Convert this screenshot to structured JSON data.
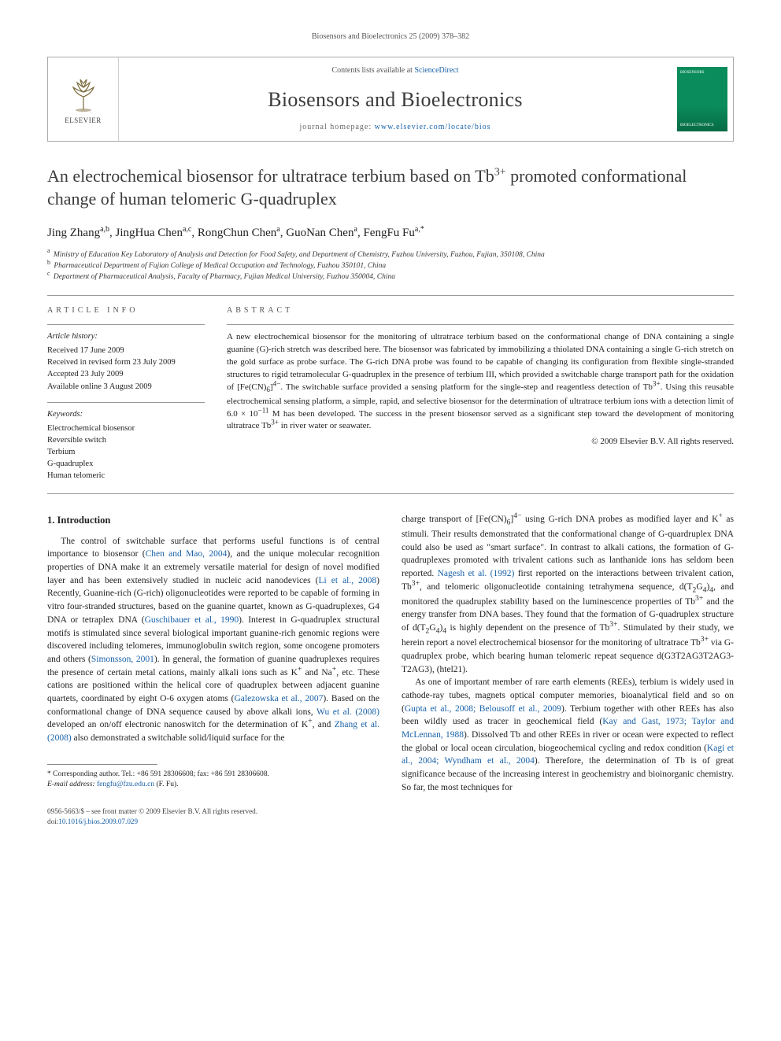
{
  "running_head": "Biosensors and Bioelectronics 25 (2009) 378–382",
  "header": {
    "publisher": "ELSEVIER",
    "contents_prefix": "Contents lists available at ",
    "contents_link": "ScienceDirect",
    "journal": "Biosensors and Bioelectronics",
    "homepage_prefix": "journal homepage: ",
    "homepage": "www.elsevier.com/locate/bios",
    "cover_top": "BIOSENSORS",
    "cover_bottom": "BIOELECTRONICS"
  },
  "title_html": "An electrochemical biosensor for ultratrace terbium based on Tb<sup>3+</sup> promoted conformational change of human telomeric G-quadruplex",
  "authors_html": "Jing Zhang<sup>a,b</sup>, JingHua Chen<sup>a,c</sup>, RongChun Chen<sup>a</sup>, GuoNan Chen<sup>a</sup>, FengFu Fu<sup>a,*</sup>",
  "affiliations": [
    {
      "sup": "a",
      "text": "Ministry of Education Key Laboratory of Analysis and Detection for Food Safety, and Department of Chemistry, Fuzhou University, Fuzhou, Fujian, 350108, China"
    },
    {
      "sup": "b",
      "text": "Pharmaceutical Department of Fujian College of Medical Occupation and Technology, Fuzhou 350101, China"
    },
    {
      "sup": "c",
      "text": "Department of Pharmaceutical Analysis, Faculty of Pharmacy, Fujian Medical University, Fuzhou 350004, China"
    }
  ],
  "info": {
    "heading": "article info",
    "history_label": "Article history:",
    "history": [
      "Received 17 June 2009",
      "Received in revised form 23 July 2009",
      "Accepted 23 July 2009",
      "Available online 3 August 2009"
    ],
    "keywords_label": "Keywords:",
    "keywords": [
      "Electrochemical biosensor",
      "Reversible switch",
      "Terbium",
      "G-quadruplex",
      "Human telomeric"
    ]
  },
  "abstract": {
    "heading": "abstract",
    "text_html": "A new electrochemical biosensor for the monitoring of ultratrace terbium based on the conformational change of DNA containing a single guanine (G)-rich stretch was described here. The biosensor was fabricated by immobilizing a thiolated DNA containing a single G-rich stretch on the gold surface as probe surface. The G-rich DNA probe was found to be capable of changing its configuration from flexible single-stranded structures to rigid tetramolecular G-quadruplex in the presence of terbium III, which provided a switchable charge transport path for the oxidation of [Fe(CN)<sub>6</sub>]<sup>4−</sup>. The switchable surface provided a sensing platform for the single-step and reagentless detection of Tb<sup>3+</sup>. Using this reusable electrochemical sensing platform, a simple, rapid, and selective biosensor for the determination of ultratrace terbium ions with a detection limit of 6.0 × 10<sup>−11</sup> M has been developed. The success in the present biosensor served as a significant step toward the development of monitoring ultratrace Tb<sup>3+</sup> in river water or seawater.",
    "copyright": "© 2009 Elsevier B.V. All rights reserved."
  },
  "section1": {
    "heading": "1. Introduction",
    "para1_html": "The control of switchable surface that performs useful functions is of central importance to biosensor (<span class='cite'>Chen and Mao, 2004</span>), and the unique molecular recognition properties of DNA make it an extremely versatile material for design of novel modified layer and has been extensively studied in nucleic acid nanodevices (<span class='cite'>Li et al., 2008</span>) Recently, Guanine-rich (G-rich) oligonucleotides were reported to be capable of forming in vitro four-stranded structures, based on the guanine quartet, known as G-quadruplexes, G4 DNA or tetraplex DNA (<span class='cite'>Guschibauer et al., 1990</span>). Interest in G-quadruplex structural motifs is stimulated since several biological important guanine-rich genomic regions were discovered including telomeres, immunoglobulin switch region, some oncogene promoters and others (<span class='cite'>Simonsson, 2001</span>). In general, the formation of guanine quadruplexes requires the presence of certain metal cations, mainly alkali ions such as K<sup>+</sup> and Na<sup>+</sup>, etc. These cations are positioned within the helical core of quadruplex between adjacent guanine quartets, coordinated by eight O-6 oxygen atoms (<span class='cite'>Galezowska et al., 2007</span>). Based on the conformational change of DNA sequence caused by above alkali ions, <span class='cite'>Wu et al. (2008)</span> developed an on/off electronic nanoswitch for the determination of K<sup>+</sup>, and <span class='cite'>Zhang et al. (2008)</span> also demonstrated a switchable solid/liquid surface for the",
    "para2_html": "charge transport of [Fe(CN)<sub>6</sub>]<sup>4−</sup> using G-rich DNA probes as modified layer and K<sup>+</sup> as stimuli. Their results demonstrated that the conformational change of G-quardruplex DNA could also be used as \"smart surface\". In contrast to alkali cations, the formation of G-quadruplexes promoted with trivalent cations such as lanthanide ions has seldom been reported. <span class='cite'>Nagesh et al. (1992)</span> first reported on the interactions between trivalent cation, Tb<sup>3+</sup>, and telomeric oligonucleotide containing tetrahymena sequence, d(T<sub>2</sub>G<sub>4</sub>)<sub>4</sub>, and monitored the quadruplex stability based on the luminescence properties of Tb<sup>3+</sup> and the energy transfer from DNA bases. They found that the formation of G-quadruplex structure of d(T<sub>2</sub>G<sub>4</sub>)<sub>4</sub> is highly dependent on the presence of Tb<sup>3+</sup>. Stimulated by their study, we herein report a novel electrochemical biosensor for the monitoring of ultratrace Tb<sup>3+</sup> via G-quadruplex probe, which bearing human telomeric repeat sequence d(G3T2AG3T2AG3-T2AG3), (htel21).",
    "para3_html": "As one of important member of rare earth elements (REEs), terbium is widely used in cathode-ray tubes, magnets optical computer memories, bioanalytical field and so on (<span class='cite'>Gupta et al., 2008; Belousoff et al., 2009</span>). Terbium together with other REEs has also been wildly used as tracer in geochemical field (<span class='cite'>Kay and Gast, 1973; Taylor and McLennan, 1988</span>). Dissolved Tb and other REEs in river or ocean were expected to reflect the global or local ocean circulation, biogeochemical cycling and redox condition (<span class='cite'>Kagi et al., 2004; Wyndham et al., 2004</span>). Therefore, the determination of Tb is of great significance because of the increasing interest in geochemistry and bioinorganic chemistry. So far, the most techniques for"
  },
  "footnote": {
    "corr_label": "* Corresponding author. Tel.: +86 591 28306608; fax: +86 591 28306608.",
    "email_label": "E-mail address:",
    "email": "fengfu@fzu.edu.cn",
    "email_suffix": "(F. Fu)."
  },
  "footer": {
    "left_line1": "0956-5663/$ – see front matter © 2009 Elsevier B.V. All rights reserved.",
    "doi_prefix": "doi:",
    "doi": "10.1016/j.bios.2009.07.029"
  },
  "colors": {
    "link": "#1861a8",
    "cover": "#0a8c5c",
    "text": "#222222",
    "rule": "#999999"
  }
}
